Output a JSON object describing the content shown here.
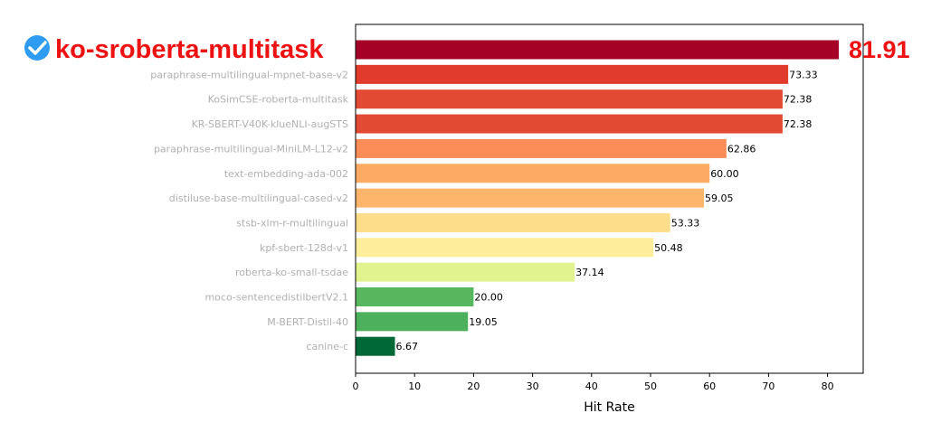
{
  "chart_data": {
    "type": "bar",
    "orientation": "horizontal",
    "categories": [
      "ko-sroberta-multitask",
      "paraphrase-multilingual-mpnet-base-v2",
      "KoSimCSE-roberta-multitask",
      "KR-SBERT-V40K-klueNLI-augSTS",
      "paraphrase-multilingual-MiniLM-L12-v2",
      "text-embedding-ada-002",
      "distiluse-base-multilingual-cased-v2",
      "stsb-xlm-r-multilingual",
      "kpf-sbert-128d-v1",
      "roberta-ko-small-tsdae",
      "moco-sentencedistilbertV2.1",
      "M-BERT-Distil-40",
      "canine-c"
    ],
    "values": [
      81.91,
      73.33,
      72.38,
      72.38,
      62.86,
      60.0,
      59.05,
      53.33,
      50.48,
      37.14,
      20.0,
      19.05,
      6.67
    ],
    "value_labels": [
      "81.91",
      "73.33",
      "72.38",
      "72.38",
      "62.86",
      "60.00",
      "59.05",
      "53.33",
      "50.48",
      "37.14",
      "20.00",
      "19.05",
      "6.67"
    ],
    "colors": [
      "#a50026",
      "#e03b2d",
      "#e34a33",
      "#e34a33",
      "#fc8d59",
      "#fdaa63",
      "#fdb46b",
      "#fedd8a",
      "#feed9b",
      "#e0f38f",
      "#57b75e",
      "#4cb05c",
      "#006837"
    ],
    "highlight_index": 0,
    "highlight_color": "#ee1111",
    "check_color": "#2e9cf3",
    "xlabel": "Hit Rate",
    "ylabel": "",
    "title": "",
    "xlim": [
      0,
      86
    ],
    "xticks": [
      0,
      10,
      20,
      30,
      40,
      50,
      60,
      70,
      80
    ],
    "grid": false,
    "legend": "none"
  }
}
